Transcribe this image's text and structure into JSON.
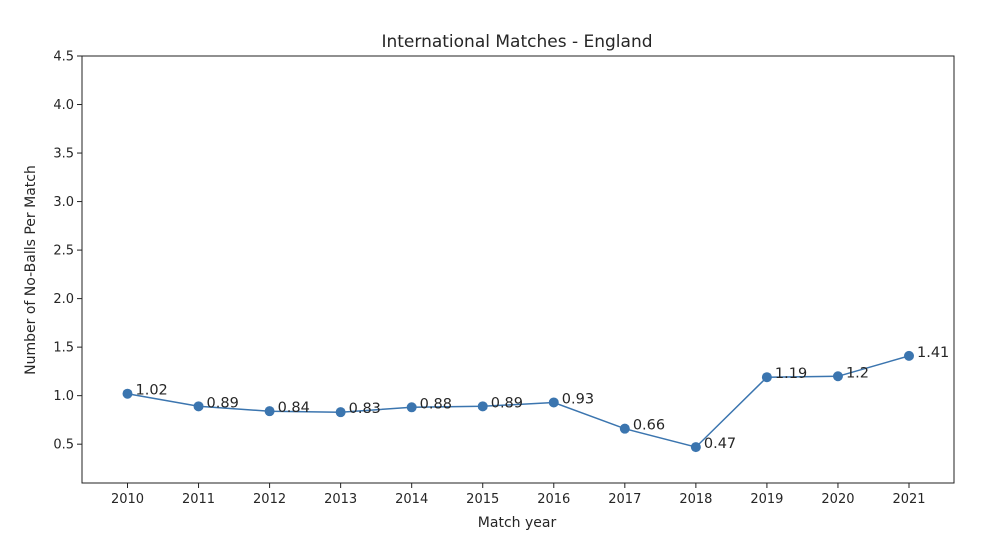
{
  "chart_data": {
    "type": "line",
    "title": "International Matches - England",
    "xlabel": "Match year",
    "ylabel": "Number of No-Balls Per Match",
    "categories": [
      "2010",
      "2011",
      "2012",
      "2013",
      "2014",
      "2015",
      "2016",
      "2017",
      "2018",
      "2019",
      "2020",
      "2021"
    ],
    "series": [
      {
        "values": [
          1.02,
          0.89,
          0.84,
          0.83,
          0.88,
          0.89,
          0.93,
          0.66,
          0.47,
          1.19,
          1.2,
          1.41
        ],
        "labels": [
          "1.02",
          "0.89",
          "0.84",
          "0.83",
          "0.88",
          "0.89",
          "0.93",
          "0.66",
          "0.47",
          "1.19",
          "1.2",
          "1.41"
        ],
        "color": "#3b75af"
      }
    ],
    "ylim": [
      0.1,
      4.5
    ],
    "yticks": [
      "0.5",
      "1.0",
      "1.5",
      "2.0",
      "2.5",
      "3.0",
      "3.5",
      "4.0",
      "4.5"
    ],
    "grid": false,
    "marker": "circle"
  }
}
